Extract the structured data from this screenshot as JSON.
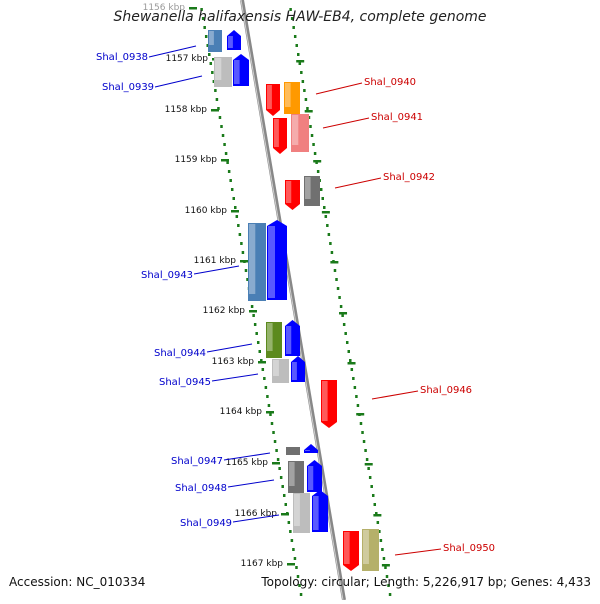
{
  "title": "Shewanella halifaxensis HAW-EB4, complete genome",
  "accession": "Accession: NC_010334",
  "summary": "Topology: circular; Length: 5,226,917 bp; Genes: 4,433",
  "scale": {
    "labels": [
      "1156 kbp",
      "1157 kbp",
      "1158 kbp",
      "1159 kbp",
      "1160 kbp",
      "1161 kbp",
      "1162 kbp",
      "1163 kbp",
      "1164 kbp",
      "1165 kbp",
      "1166 kbp",
      "1167 kbp"
    ]
  },
  "genes_left": [
    {
      "id": "Shal_0938",
      "color": "#0000cc"
    },
    {
      "id": "Shal_0939",
      "color": "#0000cc"
    },
    {
      "id": "Shal_0943",
      "color": "#0000cc"
    },
    {
      "id": "Shal_0944",
      "color": "#0000cc"
    },
    {
      "id": "Shal_0945",
      "color": "#0000cc"
    },
    {
      "id": "Shal_0947",
      "color": "#0000cc"
    },
    {
      "id": "Shal_0948",
      "color": "#0000cc"
    },
    {
      "id": "Shal_0949",
      "color": "#0000cc"
    }
  ],
  "genes_right": [
    {
      "id": "Shal_0940",
      "color": "#cc0000"
    },
    {
      "id": "Shal_0941",
      "color": "#cc0000"
    },
    {
      "id": "Shal_0942",
      "color": "#cc0000"
    },
    {
      "id": "Shal_0946",
      "color": "#cc0000"
    },
    {
      "id": "Shal_0950",
      "color": "#cc0000"
    }
  ],
  "colors": {
    "forward_gene": "#0000ff",
    "reverse_gene": "#ff0000",
    "cog_steelblue": "#4a7fb5",
    "cog_orange": "#ff9900",
    "cog_pink": "#f08080",
    "cog_gray": "#707070",
    "cog_lightgray": "#bdbdbd",
    "cog_green": "#5c8a1e",
    "cog_khaki": "#b5b06a",
    "dotted_track": "#1a7a1a",
    "backbone": "#888888"
  }
}
